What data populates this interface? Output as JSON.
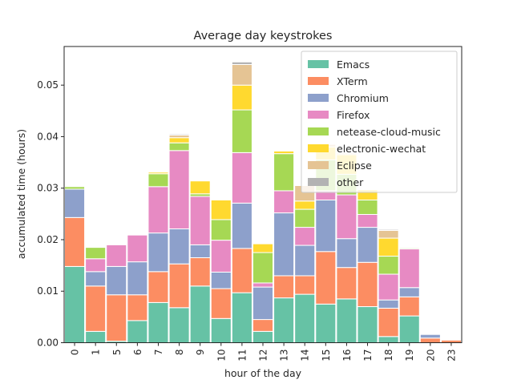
{
  "chart_data": {
    "type": "bar",
    "stacked": true,
    "title": "Average day keystrokes",
    "xlabel": "hour of the day",
    "ylabel": "accumulated time (hours)",
    "ylim": [
      0,
      0.0575
    ],
    "yticks": [
      0.0,
      0.01,
      0.02,
      0.03,
      0.04,
      0.05
    ],
    "ytick_labels": [
      "0.00",
      "0.01",
      "0.02",
      "0.03",
      "0.04",
      "0.05"
    ],
    "grid": false,
    "legend_position": "top-right",
    "categories": [
      "0",
      "1",
      "5",
      "6",
      "7",
      "8",
      "9",
      "10",
      "11",
      "12",
      "13",
      "14",
      "15",
      "16",
      "17",
      "18",
      "19",
      "20",
      "23"
    ],
    "series": [
      {
        "name": "Emacs",
        "color": "#66c2a5",
        "values": [
          0.0148,
          0.0022,
          0.0003,
          0.0043,
          0.0078,
          0.0068,
          0.011,
          0.0047,
          0.0097,
          0.0022,
          0.0087,
          0.0094,
          0.0075,
          0.0085,
          0.007,
          0.0012,
          0.0052,
          0.0,
          0.0
        ]
      },
      {
        "name": "XTerm",
        "color": "#fc8d62",
        "values": [
          0.0095,
          0.0088,
          0.009,
          0.005,
          0.006,
          0.0085,
          0.0055,
          0.0058,
          0.0086,
          0.0023,
          0.0043,
          0.0036,
          0.0102,
          0.0061,
          0.0086,
          0.0055,
          0.0037,
          0.0009,
          0.0005
        ]
      },
      {
        "name": "Chromium",
        "color": "#8da0cb",
        "values": [
          0.0055,
          0.0028,
          0.0055,
          0.0064,
          0.0075,
          0.0068,
          0.0025,
          0.0032,
          0.0088,
          0.0063,
          0.0122,
          0.0059,
          0.01,
          0.0056,
          0.0068,
          0.0016,
          0.0018,
          0.0007,
          0.0
        ]
      },
      {
        "name": "Firefox",
        "color": "#e78ac3",
        "values": [
          0.0,
          0.0025,
          0.0042,
          0.0052,
          0.009,
          0.0152,
          0.0094,
          0.0062,
          0.0098,
          0.0008,
          0.0043,
          0.0035,
          0.0018,
          0.0085,
          0.0025,
          0.005,
          0.0075,
          0.0,
          0.0
        ]
      },
      {
        "name": "netease-cloud-music",
        "color": "#a6d854",
        "values": [
          0.0005,
          0.0022,
          0.0,
          0.0,
          0.0025,
          0.0015,
          0.0005,
          0.004,
          0.0083,
          0.0059,
          0.0072,
          0.0035,
          0.006,
          0.004,
          0.0028,
          0.0035,
          0.0002,
          0.0,
          0.0
        ]
      },
      {
        "name": "electronic-wechat",
        "color": "#ffd92f",
        "values": [
          0.0,
          0.0,
          0.0,
          0.0,
          0.0003,
          0.001,
          0.0025,
          0.0038,
          0.0048,
          0.0017,
          0.0005,
          0.0016,
          0.0025,
          0.0038,
          0.002,
          0.0035,
          0.0,
          0.0,
          0.0
        ]
      },
      {
        "name": "Eclipse",
        "color": "#e5c494",
        "values": [
          0.0,
          0.0,
          0.0,
          0.0,
          0.0,
          0.0005,
          0.0,
          0.0,
          0.004,
          0.0,
          0.0,
          0.003,
          0.0005,
          0.0003,
          0.0,
          0.0015,
          0.0,
          0.0,
          0.0
        ]
      },
      {
        "name": "other",
        "color": "#b3b3b3",
        "values": [
          0.0,
          0.0,
          0.0,
          0.0,
          0.0,
          0.0002,
          0.0,
          0.0,
          0.0005,
          0.0,
          0.0,
          0.0,
          0.0,
          0.0,
          0.0,
          0.0002,
          0.0001,
          0.0,
          0.0
        ]
      }
    ]
  }
}
